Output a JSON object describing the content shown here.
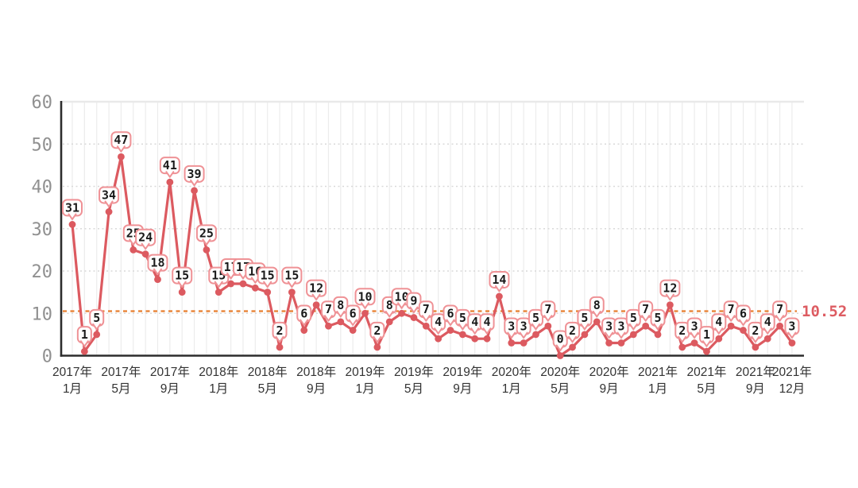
{
  "chart_data": {
    "type": "line",
    "title": "",
    "legend": "none",
    "grid": true,
    "ylim": [
      0,
      60
    ],
    "y_ticks": [
      0,
      10,
      20,
      30,
      40,
      50,
      60
    ],
    "categories": [
      "2017年1月",
      "2017年2月",
      "2017年3月",
      "2017年4月",
      "2017年5月",
      "2017年6月",
      "2017年7月",
      "2017年8月",
      "2017年9月",
      "2017年10月",
      "2017年11月",
      "2017年12月",
      "2018年1月",
      "2018年2月",
      "2018年3月",
      "2018年4月",
      "2018年5月",
      "2018年6月",
      "2018年7月",
      "2018年8月",
      "2018年9月",
      "2018年10月",
      "2018年11月",
      "2018年12月",
      "2019年1月",
      "2019年2月",
      "2019年3月",
      "2019年4月",
      "2019年5月",
      "2019年6月",
      "2019年7月",
      "2019年8月",
      "2019年9月",
      "2019年10月",
      "2019年11月",
      "2019年12月",
      "2020年1月",
      "2020年2月",
      "2020年3月",
      "2020年4月",
      "2020年5月",
      "2020年6月",
      "2020年7月",
      "2020年8月",
      "2020年9月",
      "2020年10月",
      "2020年11月",
      "2020年12月",
      "2021年1月",
      "2021年2月",
      "2021年3月",
      "2021年4月",
      "2021年5月",
      "2021年6月",
      "2021年7月",
      "2021年8月",
      "2021年9月",
      "2021年10月",
      "2021年11月",
      "2021年12月"
    ],
    "values": [
      31,
      1,
      5,
      34,
      47,
      25,
      24,
      18,
      41,
      15,
      39,
      25,
      15,
      17,
      17,
      16,
      15,
      2,
      15,
      6,
      12,
      7,
      8,
      6,
      10,
      2,
      8,
      10,
      9,
      7,
      4,
      6,
      5,
      4,
      4,
      14,
      3,
      3,
      5,
      7,
      0,
      2,
      5,
      8,
      3,
      3,
      5,
      7,
      5,
      12,
      2,
      3,
      1,
      4,
      7,
      6,
      2,
      4,
      7,
      3
    ],
    "data_labels": true,
    "x_ticks": [
      {
        "index": 0,
        "line1": "2017年",
        "line2": "1月"
      },
      {
        "index": 4,
        "line1": "2017年",
        "line2": "5月"
      },
      {
        "index": 8,
        "line1": "2017年",
        "line2": "9月"
      },
      {
        "index": 12,
        "line1": "2018年",
        "line2": "1月"
      },
      {
        "index": 16,
        "line1": "2018年",
        "line2": "5月"
      },
      {
        "index": 20,
        "line1": "2018年",
        "line2": "9月"
      },
      {
        "index": 24,
        "line1": "2019年",
        "line2": "1月"
      },
      {
        "index": 28,
        "line1": "2019年",
        "line2": "5月"
      },
      {
        "index": 32,
        "line1": "2019年",
        "line2": "9月"
      },
      {
        "index": 36,
        "line1": "2020年",
        "line2": "1月"
      },
      {
        "index": 40,
        "line1": "2020年",
        "line2": "5月"
      },
      {
        "index": 44,
        "line1": "2020年",
        "line2": "9月"
      },
      {
        "index": 48,
        "line1": "2021年",
        "line2": "1月"
      },
      {
        "index": 52,
        "line1": "2021年",
        "line2": "5月"
      },
      {
        "index": 56,
        "line1": "2021年",
        "line2": "9月"
      },
      {
        "index": 59,
        "line1": "2021年",
        "line2": "12月"
      }
    ],
    "average_line": {
      "value": 10.52,
      "label": "10.52"
    },
    "colors": {
      "series": "#dc5a60",
      "marker": "#dc5a60",
      "label_bg": "#ffffff",
      "label_border": "#ef9296",
      "label_text": "#1a1a1a",
      "average": "#e87e2e",
      "average_label": "#dd5c62",
      "axis": "#2d2d2d",
      "y_tick_text": "#909090",
      "x_tick_text": "#333333",
      "vgrid": "#ececec",
      "hgrid": "#d9d9d9",
      "plot_top_border": "#e9e9e9"
    }
  }
}
